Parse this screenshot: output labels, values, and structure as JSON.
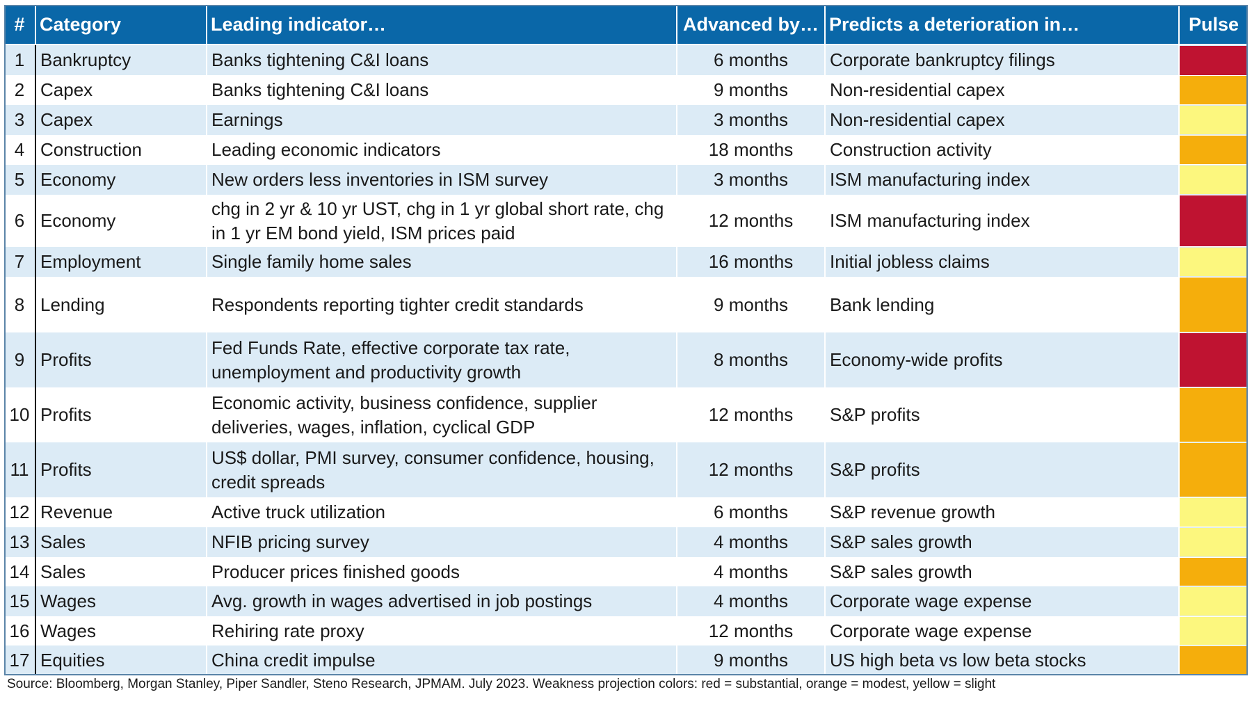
{
  "chart_data": {
    "type": "table",
    "headers": [
      "#",
      "Category",
      "Leading indicator…",
      "Advanced by…",
      "Predicts a deterioration in…",
      "Pulse"
    ],
    "pulse_colors": {
      "red": "#bf1331",
      "orange": "#f5ae0c",
      "yellow": "#fcf77e"
    },
    "rows": [
      {
        "num": "1",
        "category": "Bankruptcy",
        "indicator": "Banks tightening C&I loans",
        "advanced": "6 months",
        "predicts": "Corporate bankruptcy filings",
        "pulse": "red",
        "h": 44
      },
      {
        "num": "2",
        "category": "Capex",
        "indicator": "Banks tightening C&I loans",
        "advanced": "9 months",
        "predicts": "Non-residential capex",
        "pulse": "orange",
        "h": 43
      },
      {
        "num": "3",
        "category": "Capex",
        "indicator": "Earnings",
        "advanced": "3 months",
        "predicts": "Non-residential capex",
        "pulse": "yellow",
        "h": 43
      },
      {
        "num": "4",
        "category": "Construction",
        "indicator": "Leading economic indicators",
        "advanced": "18 months",
        "predicts": "Construction activity",
        "pulse": "orange",
        "h": 43
      },
      {
        "num": "5",
        "category": "Economy",
        "indicator": "New orders less inventories in ISM survey",
        "advanced": "3 months",
        "predicts": "ISM manufacturing index",
        "pulse": "yellow",
        "h": 43
      },
      {
        "num": "6",
        "category": "Economy",
        "indicator": "chg in 2 yr & 10 yr UST, chg in 1 yr global short rate, chg in 1 yr EM bond yield, ISM prices paid",
        "advanced": "12 months",
        "predicts": "ISM manufacturing index",
        "pulse": "red",
        "h": 75
      },
      {
        "num": "7",
        "category": "Employment",
        "indicator": "Single family home sales",
        "advanced": "16 months",
        "predicts": "Initial jobless claims",
        "pulse": "yellow",
        "h": 43
      },
      {
        "num": "8",
        "category": "Lending",
        "indicator": "Respondents reporting tighter credit standards",
        "advanced": "9 months",
        "predicts": "Bank lending",
        "pulse": "orange",
        "h": 80
      },
      {
        "num": "9",
        "category": "Profits",
        "indicator": "Fed Funds Rate, effective corporate tax rate, unemployment and productivity growth",
        "advanced": "8 months",
        "predicts": "Economy-wide profits",
        "pulse": "red",
        "h": 79
      },
      {
        "num": "10",
        "category": "Profits",
        "indicator": "Economic activity, business confidence, supplier deliveries, wages, inflation, cyclical GDP",
        "advanced": "12 months",
        "predicts": "S&P profits",
        "pulse": "orange",
        "h": 79
      },
      {
        "num": "11",
        "category": "Profits",
        "indicator": "US$ dollar, PMI survey, consumer confidence, housing, credit spreads",
        "advanced": "12 months",
        "predicts": "S&P profits",
        "pulse": "orange",
        "h": 79
      },
      {
        "num": "12",
        "category": "Revenue",
        "indicator": "Active truck utilization",
        "advanced": "6 months",
        "predicts": "S&P revenue growth",
        "pulse": "yellow",
        "h": 43
      },
      {
        "num": "13",
        "category": "Sales",
        "indicator": "NFIB pricing survey",
        "advanced": "4 months",
        "predicts": "S&P sales growth",
        "pulse": "yellow",
        "h": 43
      },
      {
        "num": "14",
        "category": "Sales",
        "indicator": "Producer prices finished goods",
        "advanced": "4 months",
        "predicts": "S&P sales growth",
        "pulse": "orange",
        "h": 42
      },
      {
        "num": "15",
        "category": "Wages",
        "indicator": "Avg. growth in wages advertised in job postings",
        "advanced": "4 months",
        "predicts": "Corporate wage expense",
        "pulse": "yellow",
        "h": 43
      },
      {
        "num": "16",
        "category": "Wages",
        "indicator": "Rehiring rate proxy",
        "advanced": "12 months",
        "predicts": "Corporate wage expense",
        "pulse": "yellow",
        "h": 42
      },
      {
        "num": "17",
        "category": "Equities",
        "indicator": "China credit impulse",
        "advanced": "9 months",
        "predicts": "US high beta vs low beta stocks",
        "pulse": "orange",
        "h": 43
      }
    ],
    "source": "Source: Bloomberg, Morgan Stanley, Piper Sandler, Steno Research, JPMAM. July 2023. Weakness projection colors: red = substantial, orange = modest, yellow = slight"
  }
}
